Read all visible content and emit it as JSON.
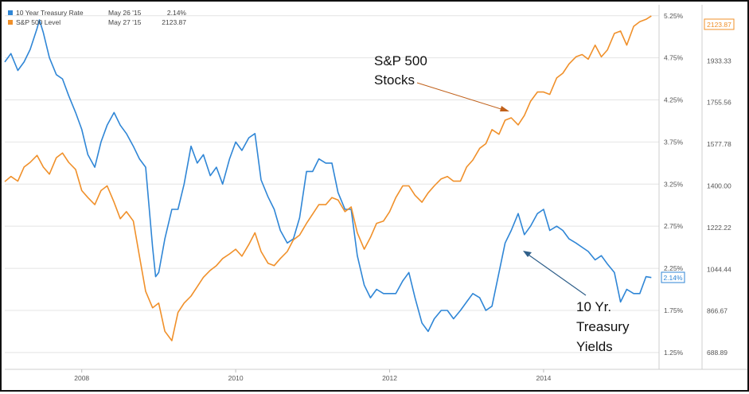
{
  "legend": [
    {
      "name": "10 Year Treasury Rate",
      "date": "May 26 '15",
      "value": "2.14%",
      "color": "#2f86d6"
    },
    {
      "name": "S&P 500 Level",
      "date": "May 27 '15",
      "value": "2123.87",
      "color": "#f0902a"
    }
  ],
  "annotations": {
    "sp": [
      "S&P 500",
      "Stocks"
    ],
    "ty": [
      "10 Yr.",
      "Treasury",
      "Yields"
    ]
  },
  "end_badges": {
    "treasury": "2.14%",
    "sp": "2123.87"
  },
  "chart_data": {
    "type": "line",
    "x_ticks": [
      "2008",
      "2010",
      "2012",
      "2014"
    ],
    "x_range": [
      2007.0,
      2015.5
    ],
    "left_axis": {
      "ticks": [
        "5.25%",
        "4.75%",
        "4.25%",
        "3.75%",
        "3.25%",
        "2.75%",
        "2.25%",
        "1.75%",
        "1.25%"
      ],
      "ylim": [
        1.05,
        5.38
      ],
      "series": "10 Year Treasury Rate"
    },
    "right_axis": {
      "ticks": [
        "2123.87",
        "1933.33",
        "1755.56",
        "1577.78",
        "1400.00",
        "1222.22",
        "1044.44",
        "866.67",
        "688.89"
      ],
      "ylim": [
        617.8,
        2172
      ],
      "series": "S&P 500 Level"
    },
    "series": [
      {
        "name": "10 Year Treasury Rate",
        "color": "#2f86d6",
        "x": [
          2007.0,
          2007.08,
          2007.17,
          2007.25,
          2007.33,
          2007.42,
          2007.45,
          2007.5,
          2007.58,
          2007.67,
          2007.75,
          2007.83,
          2007.92,
          2008.0,
          2008.08,
          2008.17,
          2008.25,
          2008.33,
          2008.42,
          2008.5,
          2008.58,
          2008.67,
          2008.75,
          2008.83,
          2008.92,
          2008.96,
          2009.0,
          2009.08,
          2009.17,
          2009.25,
          2009.33,
          2009.42,
          2009.5,
          2009.58,
          2009.67,
          2009.75,
          2009.83,
          2009.92,
          2010.0,
          2010.08,
          2010.17,
          2010.25,
          2010.33,
          2010.42,
          2010.5,
          2010.58,
          2010.67,
          2010.75,
          2010.83,
          2010.92,
          2011.0,
          2011.08,
          2011.17,
          2011.25,
          2011.33,
          2011.42,
          2011.5,
          2011.58,
          2011.67,
          2011.75,
          2011.83,
          2011.92,
          2012.0,
          2012.08,
          2012.17,
          2012.25,
          2012.33,
          2012.42,
          2012.5,
          2012.58,
          2012.67,
          2012.75,
          2012.83,
          2012.92,
          2013.0,
          2013.08,
          2013.17,
          2013.25,
          2013.33,
          2013.42,
          2013.5,
          2013.58,
          2013.67,
          2013.75,
          2013.83,
          2013.92,
          2014.0,
          2014.08,
          2014.17,
          2014.25,
          2014.33,
          2014.42,
          2014.5,
          2014.58,
          2014.67,
          2014.75,
          2014.83,
          2014.92,
          2015.0,
          2015.08,
          2015.17,
          2015.25,
          2015.33,
          2015.4
        ],
        "values": [
          4.7,
          4.8,
          4.6,
          4.7,
          4.85,
          5.1,
          5.2,
          5.05,
          4.75,
          4.55,
          4.5,
          4.3,
          4.1,
          3.9,
          3.6,
          3.45,
          3.75,
          3.95,
          4.1,
          3.95,
          3.85,
          3.7,
          3.55,
          3.45,
          2.5,
          2.15,
          2.2,
          2.6,
          2.95,
          2.95,
          3.25,
          3.7,
          3.5,
          3.6,
          3.35,
          3.45,
          3.25,
          3.55,
          3.75,
          3.65,
          3.8,
          3.85,
          3.3,
          3.1,
          2.95,
          2.7,
          2.55,
          2.6,
          2.85,
          3.4,
          3.4,
          3.55,
          3.5,
          3.5,
          3.15,
          2.95,
          2.95,
          2.4,
          2.05,
          1.9,
          2.0,
          1.95,
          1.95,
          1.95,
          2.1,
          2.2,
          1.9,
          1.6,
          1.5,
          1.65,
          1.75,
          1.75,
          1.65,
          1.75,
          1.85,
          1.95,
          1.9,
          1.75,
          1.8,
          2.2,
          2.55,
          2.7,
          2.9,
          2.65,
          2.75,
          2.9,
          2.95,
          2.7,
          2.75,
          2.7,
          2.6,
          2.55,
          2.5,
          2.45,
          2.35,
          2.4,
          2.3,
          2.2,
          1.85,
          2.0,
          1.95,
          1.95,
          2.15,
          2.14
        ]
      },
      {
        "name": "S&P 500 Level",
        "color": "#f0902a",
        "x": [
          2007.0,
          2007.08,
          2007.17,
          2007.25,
          2007.33,
          2007.42,
          2007.5,
          2007.58,
          2007.67,
          2007.75,
          2007.83,
          2007.92,
          2008.0,
          2008.08,
          2008.17,
          2008.25,
          2008.33,
          2008.42,
          2008.5,
          2008.58,
          2008.67,
          2008.75,
          2008.83,
          2008.92,
          2009.0,
          2009.08,
          2009.17,
          2009.25,
          2009.33,
          2009.42,
          2009.5,
          2009.58,
          2009.67,
          2009.75,
          2009.83,
          2009.92,
          2010.0,
          2010.08,
          2010.17,
          2010.25,
          2010.33,
          2010.42,
          2010.5,
          2010.58,
          2010.67,
          2010.75,
          2010.83,
          2010.92,
          2011.0,
          2011.08,
          2011.17,
          2011.25,
          2011.33,
          2011.42,
          2011.5,
          2011.58,
          2011.67,
          2011.75,
          2011.83,
          2011.92,
          2012.0,
          2012.08,
          2012.17,
          2012.25,
          2012.33,
          2012.42,
          2012.5,
          2012.58,
          2012.67,
          2012.75,
          2012.83,
          2012.92,
          2013.0,
          2013.08,
          2013.17,
          2013.25,
          2013.33,
          2013.42,
          2013.5,
          2013.58,
          2013.67,
          2013.75,
          2013.83,
          2013.92,
          2014.0,
          2014.08,
          2014.17,
          2014.25,
          2014.33,
          2014.42,
          2014.5,
          2014.58,
          2014.67,
          2014.75,
          2014.83,
          2014.92,
          2015.0,
          2015.08,
          2015.17,
          2015.25,
          2015.33,
          2015.4
        ],
        "values": [
          1418,
          1440,
          1420,
          1480,
          1500,
          1530,
          1480,
          1450,
          1520,
          1540,
          1500,
          1470,
          1380,
          1350,
          1320,
          1380,
          1400,
          1330,
          1260,
          1290,
          1250,
          1100,
          950,
          880,
          900,
          780,
          740,
          860,
          900,
          930,
          970,
          1010,
          1040,
          1060,
          1090,
          1110,
          1130,
          1100,
          1150,
          1200,
          1120,
          1070,
          1060,
          1090,
          1120,
          1170,
          1190,
          1240,
          1280,
          1320,
          1320,
          1350,
          1340,
          1290,
          1310,
          1200,
          1130,
          1180,
          1240,
          1250,
          1290,
          1350,
          1400,
          1400,
          1360,
          1330,
          1370,
          1400,
          1430,
          1440,
          1420,
          1420,
          1480,
          1510,
          1560,
          1580,
          1640,
          1620,
          1680,
          1690,
          1660,
          1700,
          1760,
          1800,
          1800,
          1790,
          1860,
          1880,
          1920,
          1950,
          1960,
          1940,
          2000,
          1950,
          1980,
          2050,
          2060,
          2000,
          2080,
          2100,
          2110,
          2124
        ]
      }
    ]
  }
}
